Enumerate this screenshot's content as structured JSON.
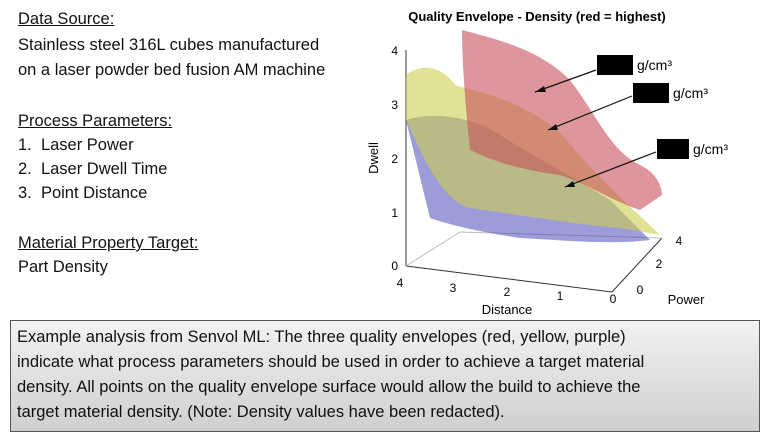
{
  "left_panel": {
    "data_source": {
      "heading": "Data Source:",
      "lines": [
        "Stainless steel 316L cubes manufactured",
        "on a laser powder bed fusion AM machine"
      ]
    },
    "process_parameters": {
      "heading": "Process Parameters:",
      "items": [
        "Laser Power",
        "Laser Dwell Time",
        "Point Distance"
      ]
    },
    "material_target": {
      "heading": "Material Property Target:",
      "text": "Part Density"
    }
  },
  "plot": {
    "title": "Quality Envelope - Density (red = highest)",
    "z_label": "Dwell",
    "x_label": "Distance",
    "y_label": "Power",
    "z_ticks": [
      "0",
      "1",
      "2",
      "3",
      "4"
    ],
    "x_ticks": [
      "4",
      "3",
      "2",
      "1",
      "0"
    ],
    "y_ticks": [
      "0",
      "2",
      "4"
    ],
    "annotations": [
      "g/cm³",
      "g/cm³",
      "g/cm³"
    ]
  },
  "caption": {
    "lines": [
      "Example analysis from Senvol ML: The three quality envelopes (red, yellow, purple)",
      "indicate what process parameters should be used in order to achieve a target material",
      "density. All points on the quality envelope surface would allow the build to achieve the",
      "target material density. (Note: Density values have been redacted)."
    ]
  }
}
